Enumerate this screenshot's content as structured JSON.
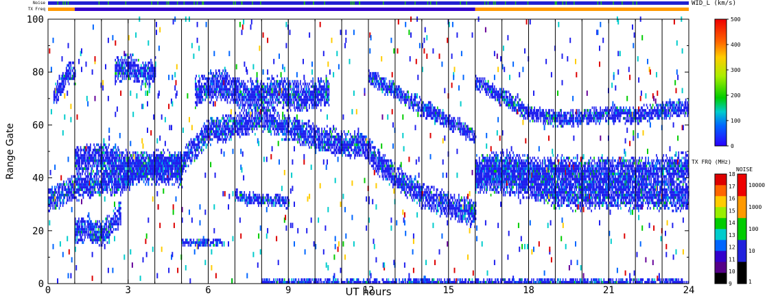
{
  "chart_data": {
    "type": "heatmap",
    "xlabel": "UT hours",
    "ylabel": "Range Gate",
    "xlim": [
      0,
      24
    ],
    "ylim": [
      0,
      100
    ],
    "x_ticks": [
      "0",
      "3",
      "6",
      "9",
      "12",
      "15",
      "18",
      "21",
      "24"
    ],
    "y_ticks": [
      "0",
      "20",
      "40",
      "60",
      "80",
      "100"
    ],
    "hour_lines": [
      1,
      2,
      3,
      4,
      5,
      6,
      7,
      8,
      9,
      10,
      11,
      12,
      13,
      14,
      15,
      16,
      17,
      18,
      19,
      20,
      21,
      22,
      23
    ],
    "status_bars": {
      "noise_label": "Noise",
      "txfreq_label": "TX Freq",
      "txfreq_segments": [
        {
          "from": 0,
          "to": 1,
          "color": "#ff9900"
        },
        {
          "from": 1,
          "to": 16,
          "color": "#3300cc"
        },
        {
          "from": 16,
          "to": 24,
          "color": "#ff9900"
        }
      ]
    },
    "colorbars": [
      {
        "title": "WID_L (km/s)",
        "ticks": [
          "0",
          "100",
          "200",
          "300",
          "400",
          "500"
        ],
        "range": [
          0,
          500
        ]
      },
      {
        "title": "TX FRQ (MHz)",
        "ticks": [
          "9",
          "10",
          "11",
          "12",
          "13",
          "14",
          "15",
          "16",
          "17",
          "18"
        ],
        "colors": [
          "#000000",
          "#550088",
          "#3300cc",
          "#0066ff",
          "#00cccc",
          "#00cc00",
          "#99ee00",
          "#ffcc00",
          "#ff6600",
          "#dd0000"
        ]
      },
      {
        "title": "NOISE",
        "ticks": [
          "1",
          "10",
          "100",
          "1000",
          "10000"
        ],
        "colors": [
          "#000000",
          "#2222dd",
          "#00cc00",
          "#ff9900",
          "#ee0000"
        ]
      }
    ],
    "echo_bands": [
      {
        "x": [
          0.0,
          1.0,
          2.0,
          2.7,
          3.4,
          4.0,
          4.8,
          5.0,
          5.3,
          6.0,
          7.0,
          8.0,
          9.0,
          10.0,
          11.0,
          11.8,
          12.3,
          13.0,
          14.0,
          15.0,
          16.0
        ],
        "y": [
          31,
          36,
          38,
          38,
          42,
          45,
          45,
          45,
          49,
          57,
          59,
          62,
          58,
          55,
          52,
          52,
          46,
          40,
          33,
          29,
          26
        ],
        "spread": 5
      },
      {
        "x": [
          1.0,
          1.5,
          2.0,
          2.4,
          2.7
        ],
        "y": [
          19,
          20,
          18,
          22,
          26
        ],
        "spread": 5
      },
      {
        "x": [
          1.0,
          2.0,
          3.0,
          4.0,
          5.0
        ],
        "y": [
          46,
          47,
          44,
          43,
          42
        ],
        "spread": 6
      },
      {
        "x": [
          16.0,
          17.0,
          18.0,
          19.0,
          20.0,
          21.0,
          22.0,
          23.0,
          24.0
        ],
        "y": [
          40,
          39,
          37,
          34,
          33,
          34,
          33,
          33,
          33
        ],
        "spread": 6
      },
      {
        "x": [
          16.0,
          17.0,
          18.0,
          19.0,
          20.0,
          21.0,
          22.0,
          23.0,
          24.0
        ],
        "y": [
          42,
          44,
          42,
          42,
          41,
          42,
          41,
          42,
          44
        ],
        "spread": 6
      },
      {
        "x": [
          7.0,
          7.5,
          8.0,
          8.5,
          9.0
        ],
        "y": [
          33,
          32,
          31,
          31,
          30
        ],
        "spread": 2
      },
      {
        "x": [
          5.0,
          5.5,
          6.0,
          6.5
        ],
        "y": [
          15,
          15,
          15,
          15
        ],
        "spread": 1
      },
      {
        "x": [
          12.0,
          13.0,
          14.0,
          15.0,
          16.0
        ],
        "y": [
          78,
          72,
          66,
          61,
          55
        ],
        "spread": 3
      },
      {
        "x": [
          0.2,
          0.5,
          0.8,
          1.0
        ],
        "y": [
          70,
          75,
          80,
          78
        ],
        "spread": 4
      },
      {
        "x": [
          16.0,
          17.0,
          18.0,
          19.0,
          20.0,
          21.0,
          22.0,
          23.0,
          24.0
        ],
        "y": [
          76,
          70,
          64,
          62,
          62,
          64,
          63,
          65,
          66
        ],
        "spread": 3
      },
      {
        "x": [
          5.5,
          6.5,
          7.5,
          8.5,
          9.5,
          10.5
        ],
        "y": [
          72,
          75,
          70,
          72,
          70,
          72
        ],
        "spread": 6
      },
      {
        "x": [
          2.5,
          3.0,
          3.5,
          4.0
        ],
        "y": [
          80,
          82,
          78,
          80
        ],
        "spread": 5
      },
      {
        "x": [
          8.0,
          9.0,
          10.0,
          11.0,
          12.0,
          13.0,
          14.0,
          15.0,
          16.0,
          17.0,
          18.0,
          19.0,
          20.0,
          21.0,
          22.0,
          23.0,
          24.0
        ],
        "y": [
          0,
          0,
          0,
          0,
          0,
          0,
          0,
          0,
          0,
          0,
          0,
          0,
          0,
          0,
          0,
          0,
          0
        ],
        "spread": 1
      }
    ]
  }
}
